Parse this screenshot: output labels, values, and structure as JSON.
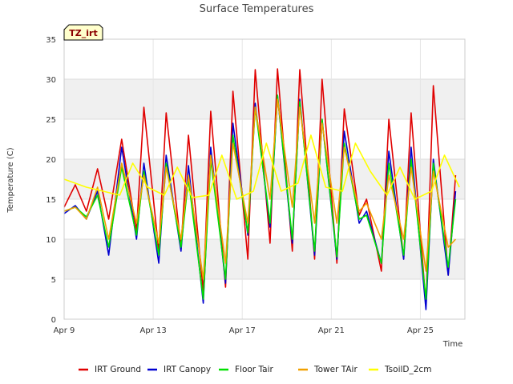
{
  "chart_data": {
    "type": "line",
    "title": "Surface Temperatures",
    "xlabel": "Time",
    "ylabel": "Temperature (C)",
    "site_tag": "TZ_irt",
    "xlim": [
      "2024-04-09",
      "2024-04-27"
    ],
    "ylim": [
      0,
      35
    ],
    "yticks": [
      0,
      5,
      10,
      15,
      20,
      25,
      30,
      35
    ],
    "xticks": [
      {
        "date": "2024-04-09",
        "label": "Apr 9"
      },
      {
        "date": "2024-04-13",
        "label": "Apr 13"
      },
      {
        "date": "2024-04-17",
        "label": "Apr 17"
      },
      {
        "date": "2024-04-21",
        "label": "Apr 21"
      },
      {
        "date": "2024-04-25",
        "label": "Apr 25"
      }
    ],
    "grid": true,
    "legend_position": "bottom",
    "series": [
      {
        "name": "IRT Ground",
        "color": "#e00000",
        "x": [
          "2024-04-09 00:00",
          "2024-04-09 12:00",
          "2024-04-10 00:00",
          "2024-04-10 12:00",
          "2024-04-11 00:00",
          "2024-04-11 14:00",
          "2024-04-12 06:00",
          "2024-04-12 14:00",
          "2024-04-13 06:00",
          "2024-04-13 14:00",
          "2024-04-14 06:00",
          "2024-04-14 14:00",
          "2024-04-15 06:00",
          "2024-04-15 14:00",
          "2024-04-16 06:00",
          "2024-04-16 14:00",
          "2024-04-17 06:00",
          "2024-04-17 14:00",
          "2024-04-18 06:00",
          "2024-04-18 14:00",
          "2024-04-19 06:00",
          "2024-04-19 14:00",
          "2024-04-20 06:00",
          "2024-04-20 14:00",
          "2024-04-21 06:00",
          "2024-04-21 14:00",
          "2024-04-22 06:00",
          "2024-04-22 14:00",
          "2024-04-23 06:00",
          "2024-04-23 14:00",
          "2024-04-24 06:00",
          "2024-04-24 14:00",
          "2024-04-25 06:00",
          "2024-04-25 14:00",
          "2024-04-26 06:00",
          "2024-04-26 14:00"
        ],
        "y": [
          14.0,
          16.8,
          13.5,
          18.8,
          12.5,
          22.5,
          11.0,
          26.5,
          8.5,
          25.8,
          9.0,
          23.0,
          3.5,
          26.0,
          4.0,
          28.5,
          7.5,
          31.2,
          9.5,
          31.3,
          8.5,
          31.2,
          7.5,
          30.0,
          7.0,
          26.3,
          13.0,
          15.0,
          6.0,
          25.0,
          7.5,
          25.8,
          1.8,
          29.2,
          5.5,
          18.0
        ]
      },
      {
        "name": "IRT Canopy",
        "color": "#0000d0",
        "x": [
          "2024-04-09 00:00",
          "2024-04-09 12:00",
          "2024-04-10 00:00",
          "2024-04-10 12:00",
          "2024-04-11 00:00",
          "2024-04-11 14:00",
          "2024-04-12 06:00",
          "2024-04-12 14:00",
          "2024-04-13 06:00",
          "2024-04-13 14:00",
          "2024-04-14 06:00",
          "2024-04-14 14:00",
          "2024-04-15 06:00",
          "2024-04-15 14:00",
          "2024-04-16 06:00",
          "2024-04-16 14:00",
          "2024-04-17 06:00",
          "2024-04-17 14:00",
          "2024-04-18 06:00",
          "2024-04-18 14:00",
          "2024-04-19 06:00",
          "2024-04-19 14:00",
          "2024-04-20 06:00",
          "2024-04-20 14:00",
          "2024-04-21 06:00",
          "2024-04-21 14:00",
          "2024-04-22 06:00",
          "2024-04-22 14:00",
          "2024-04-23 06:00",
          "2024-04-23 14:00",
          "2024-04-24 06:00",
          "2024-04-24 14:00",
          "2024-04-25 06:00",
          "2024-04-25 14:00",
          "2024-04-26 06:00",
          "2024-04-26 14:00"
        ],
        "y": [
          13.2,
          14.2,
          12.5,
          16.0,
          8.0,
          21.5,
          10.0,
          19.5,
          7.0,
          20.5,
          8.5,
          19.2,
          2.0,
          21.5,
          4.5,
          24.5,
          10.5,
          27.0,
          11.5,
          28.0,
          9.5,
          27.5,
          8.0,
          25.0,
          7.5,
          23.5,
          12.0,
          13.5,
          7.0,
          21.0,
          7.5,
          21.5,
          1.2,
          20.0,
          5.5,
          16.0
        ]
      },
      {
        "name": "Floor Tair",
        "color": "#00e000",
        "x": [
          "2024-04-09 00:00",
          "2024-04-09 12:00",
          "2024-04-10 00:00",
          "2024-04-10 12:00",
          "2024-04-11 00:00",
          "2024-04-11 14:00",
          "2024-04-12 06:00",
          "2024-04-12 14:00",
          "2024-04-13 06:00",
          "2024-04-13 14:00",
          "2024-04-14 06:00",
          "2024-04-14 14:00",
          "2024-04-15 06:00",
          "2024-04-15 14:00",
          "2024-04-16 06:00",
          "2024-04-16 14:00",
          "2024-04-17 06:00",
          "2024-04-17 14:00",
          "2024-04-18 06:00",
          "2024-04-18 14:00",
          "2024-04-19 06:00",
          "2024-04-19 14:00",
          "2024-04-20 06:00",
          "2024-04-20 14:00",
          "2024-04-21 06:00",
          "2024-04-21 14:00",
          "2024-04-22 06:00",
          "2024-04-22 14:00",
          "2024-04-23 06:00",
          "2024-04-23 14:00",
          "2024-04-24 06:00",
          "2024-04-24 14:00",
          "2024-04-25 06:00",
          "2024-04-25 14:00",
          "2024-04-26 06:00",
          "2024-04-26 14:00"
        ],
        "y": [
          13.5,
          14.0,
          12.8,
          15.5,
          9.0,
          19.0,
          10.5,
          18.5,
          8.0,
          19.5,
          9.0,
          17.5,
          2.5,
          20.0,
          5.0,
          23.0,
          10.8,
          26.5,
          12.0,
          28.0,
          10.0,
          27.2,
          8.5,
          25.0,
          7.8,
          22.0,
          12.5,
          13.0,
          7.0,
          19.5,
          8.0,
          20.0,
          2.5,
          19.5,
          6.5,
          15.0
        ]
      },
      {
        "name": "Tower TAir",
        "color": "#f0a000",
        "x": [
          "2024-04-09 00:00",
          "2024-04-09 12:00",
          "2024-04-10 00:00",
          "2024-04-10 12:00",
          "2024-04-11 00:00",
          "2024-04-11 14:00",
          "2024-04-12 06:00",
          "2024-04-12 14:00",
          "2024-04-13 06:00",
          "2024-04-13 14:00",
          "2024-04-14 06:00",
          "2024-04-14 14:00",
          "2024-04-15 06:00",
          "2024-04-15 14:00",
          "2024-04-16 06:00",
          "2024-04-16 14:00",
          "2024-04-17 06:00",
          "2024-04-17 14:00",
          "2024-04-18 06:00",
          "2024-04-18 14:00",
          "2024-04-19 06:00",
          "2024-04-19 14:00",
          "2024-04-20 06:00",
          "2024-04-20 14:00",
          "2024-04-21 06:00",
          "2024-04-21 14:00",
          "2024-04-22 06:00",
          "2024-04-22 14:00",
          "2024-04-23 06:00",
          "2024-04-23 14:00",
          "2024-04-24 06:00",
          "2024-04-24 14:00",
          "2024-04-25 06:00",
          "2024-04-25 14:00",
          "2024-04-26 06:00",
          "2024-04-26 14:00"
        ],
        "y": [
          13.5,
          14.0,
          12.5,
          16.5,
          10.0,
          19.5,
          12.0,
          18.0,
          9.5,
          19.0,
          10.0,
          18.0,
          5.0,
          20.5,
          7.0,
          22.0,
          12.0,
          26.5,
          15.0,
          27.5,
          14.0,
          26.5,
          12.0,
          24.5,
          12.0,
          21.5,
          13.5,
          14.5,
          10.0,
          18.0,
          10.0,
          19.0,
          6.0,
          18.5,
          9.0,
          10.0
        ]
      },
      {
        "name": "TsoilD_2cm",
        "color": "#ffff00",
        "x": [
          "2024-04-09 00:00",
          "2024-04-10 00:00",
          "2024-04-10 18:00",
          "2024-04-11 12:00",
          "2024-04-12 02:00",
          "2024-04-12 18:00",
          "2024-04-13 12:00",
          "2024-04-14 02:00",
          "2024-04-14 18:00",
          "2024-04-15 12:00",
          "2024-04-16 02:00",
          "2024-04-16 18:00",
          "2024-04-17 12:00",
          "2024-04-18 02:00",
          "2024-04-18 18:00",
          "2024-04-19 12:00",
          "2024-04-20 02:00",
          "2024-04-20 18:00",
          "2024-04-21 12:00",
          "2024-04-22 02:00",
          "2024-04-22 18:00",
          "2024-04-23 12:00",
          "2024-04-24 02:00",
          "2024-04-24 18:00",
          "2024-04-25 12:00",
          "2024-04-26 02:00",
          "2024-04-26 18:00"
        ],
        "y": [
          17.5,
          16.5,
          16.0,
          15.5,
          19.5,
          16.5,
          15.5,
          19.0,
          15.2,
          15.5,
          20.5,
          15.0,
          16.0,
          22.0,
          16.0,
          17.0,
          23.0,
          16.5,
          16.0,
          22.0,
          18.5,
          15.5,
          19.0,
          15.0,
          16.0,
          20.5,
          16.5
        ]
      }
    ]
  }
}
